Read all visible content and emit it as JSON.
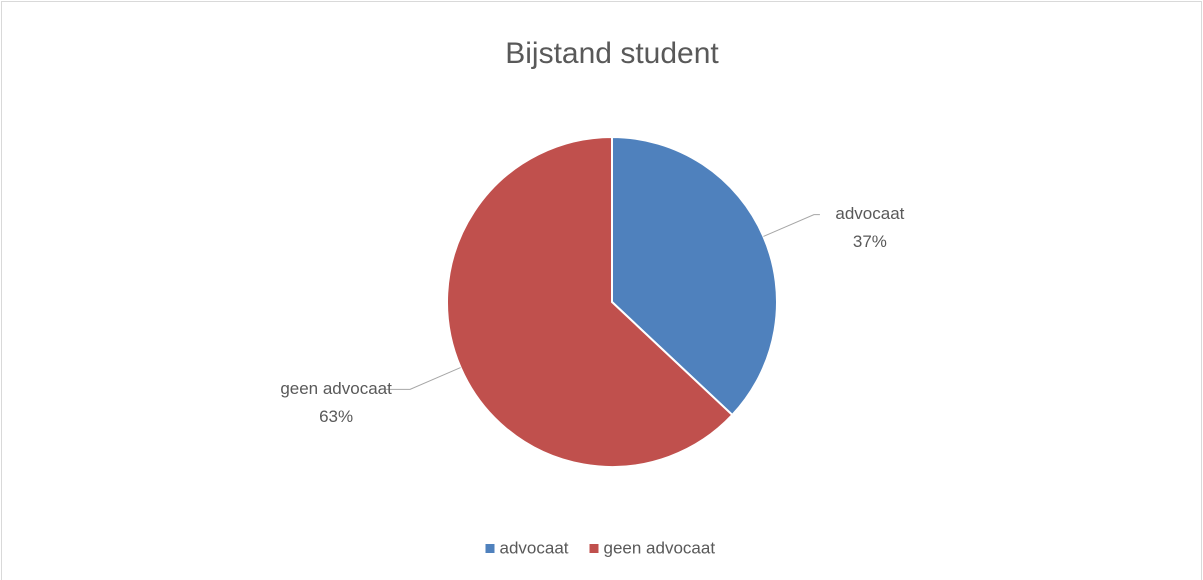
{
  "chart_data": {
    "type": "pie",
    "title": "Bijstand student",
    "categories": [
      "advocaat",
      "geen advocaat"
    ],
    "values": [
      37,
      63
    ],
    "value_labels": [
      "37%",
      "63%"
    ],
    "colors": [
      "#4f81bd",
      "#c0504d"
    ],
    "legend": "bottom"
  }
}
